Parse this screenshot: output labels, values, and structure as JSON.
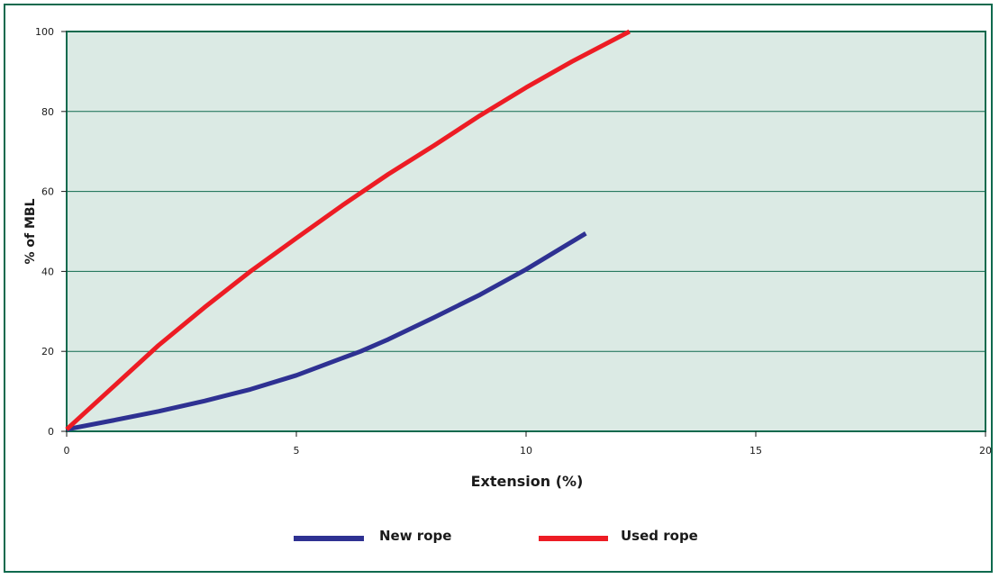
{
  "chart_data": {
    "type": "line",
    "xlabel": "Extension (%)",
    "ylabel": "% of MBL",
    "xlim": [
      0,
      20
    ],
    "ylim": [
      0,
      100
    ],
    "xticks": [
      0,
      5,
      10,
      15,
      20
    ],
    "yticks": [
      0,
      20,
      40,
      60,
      80,
      100
    ],
    "grid": "horizontal",
    "legend_position": "bottom",
    "series": [
      {
        "name": "New rope",
        "color": "#2e3192",
        "x": [
          0,
          1,
          2,
          3,
          4,
          5,
          6,
          6.4,
          7,
          8,
          9,
          10,
          11.3
        ],
        "y": [
          0.5,
          2.7,
          5,
          7.6,
          10.5,
          14,
          18.3,
          20,
          23,
          28.5,
          34.2,
          40.5,
          49.5
        ]
      },
      {
        "name": "Used rope",
        "color": "#ed1c24",
        "x": [
          0,
          1,
          2,
          3,
          4,
          5,
          6,
          7,
          8,
          9,
          10,
          11,
          12.25
        ],
        "y": [
          0.5,
          11,
          21.5,
          31,
          40,
          48.3,
          56.5,
          64.3,
          71.5,
          79,
          86,
          92.5,
          100
        ]
      }
    ]
  }
}
